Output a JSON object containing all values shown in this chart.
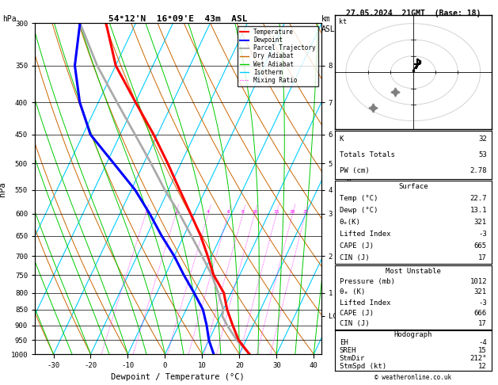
{
  "title_left": "54°12'N  16°09'E  43m  ASL",
  "title_right": "27.05.2024  21GMT  (Base: 18)",
  "xlabel": "Dewpoint / Temperature (°C)",
  "ylabel_left": "hPa",
  "stats": {
    "K": 32,
    "Totals_Totals": 53,
    "PW_cm": 2.78,
    "Surface_Temp": 22.7,
    "Surface_Dewp": 13.1,
    "Surface_theta_e": 321,
    "Surface_LI": -3,
    "Surface_CAPE": 665,
    "Surface_CIN": 17,
    "MU_Pressure": 1012,
    "MU_theta_e": 321,
    "MU_LI": -3,
    "MU_CAPE": 666,
    "MU_CIN": 17,
    "EH": -4,
    "SREH": 15,
    "StmDir": 212,
    "StmSpd": 12
  },
  "pressure_levels": [
    300,
    350,
    400,
    450,
    500,
    550,
    600,
    650,
    700,
    750,
    800,
    850,
    900,
    950,
    1000
  ],
  "isotherm_color": "#00ccff",
  "dry_adiabat_color": "#cc6600",
  "wet_adiabat_color": "#00cc00",
  "mixing_ratio_color": "#ff00ff",
  "temperature_color": "#ff0000",
  "dewpoint_color": "#0000ff",
  "parcel_color": "#aaaaaa",
  "lcl_pressure": 870,
  "sounding_temp_p": [
    1000,
    950,
    900,
    850,
    800,
    750,
    700,
    650,
    600,
    550,
    500,
    450,
    400,
    350,
    300
  ],
  "sounding_temp_t": [
    22.7,
    18.0,
    14.5,
    11.0,
    8.0,
    3.0,
    -1.0,
    -5.5,
    -11.0,
    -17.0,
    -23.5,
    -31.0,
    -40.0,
    -50.0,
    -58.0
  ],
  "sounding_dewp_t": [
    13.1,
    10.0,
    7.5,
    4.5,
    0.0,
    -5.0,
    -10.0,
    -16.0,
    -22.0,
    -29.0,
    -38.0,
    -48.0,
    -55.0,
    -61.0,
    -65.0
  ],
  "parcel_temp_p": [
    1000,
    950,
    900,
    870,
    850,
    800,
    750,
    700,
    650,
    600,
    550,
    500,
    450,
    400,
    350,
    300
  ],
  "parcel_temp_t": [
    22.7,
    17.5,
    13.0,
    10.5,
    10.0,
    6.5,
    2.5,
    -2.5,
    -8.0,
    -14.0,
    -21.0,
    -28.0,
    -36.0,
    -45.0,
    -55.0,
    -65.0
  ],
  "mixing_ratios": [
    1,
    2,
    4,
    6,
    8,
    10,
    15,
    20,
    25
  ],
  "km_pressures": [
    350,
    400,
    450,
    500,
    550,
    600,
    700,
    800
  ],
  "km_labels": [
    "8",
    "7",
    "6",
    "5",
    "4",
    "3",
    "2",
    "1"
  ],
  "bg_color": "#ffffff"
}
